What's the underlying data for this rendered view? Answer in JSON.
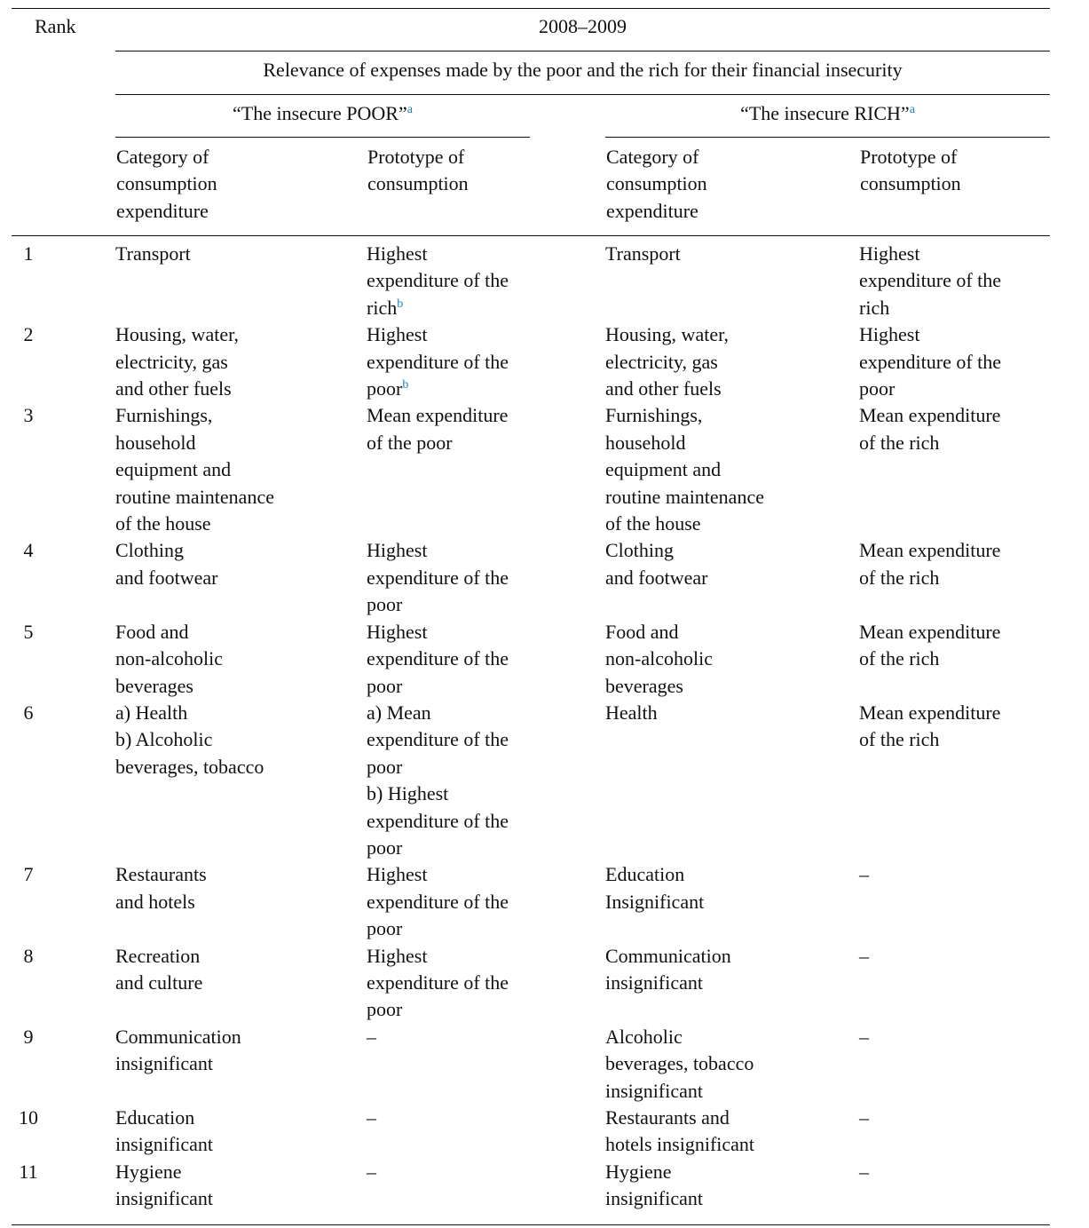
{
  "header": {
    "rank": "Rank",
    "period": "2008–2009",
    "subtitle": "Relevance of expenses made by the poor and the rich for their financial insecurity",
    "poor_group": "“The insecure POOR”",
    "poor_group_sup": "a",
    "rich_group": "“The insecure RICH”",
    "rich_group_sup": "a",
    "poor_category": "Category of\nconsumption\nexpenditure",
    "poor_prototype": "Prototype of\nconsumption",
    "rich_category": "Category of\nconsumption\nexpenditure",
    "rich_prototype": "Prototype of\nconsumption"
  },
  "footnote_color": "#1a7fc1",
  "rows": [
    {
      "rank": "1",
      "poor_category": {
        "text": "Transport"
      },
      "poor_prototype": {
        "text": "Highest\nexpenditure of the\nrich",
        "sup": "b"
      },
      "rich_category": {
        "text": "Transport"
      },
      "rich_prototype": {
        "text": "Highest\nexpenditure of the\nrich"
      }
    },
    {
      "rank": "2",
      "poor_category": {
        "text": "Housing, water,\nelectricity, gas\nand other fuels"
      },
      "poor_prototype": {
        "text": "Highest\nexpenditure of the\npoor",
        "sup": "b"
      },
      "rich_category": {
        "text": "Housing, water,\nelectricity, gas\nand other fuels"
      },
      "rich_prototype": {
        "text": "Highest\nexpenditure of the\npoor"
      }
    },
    {
      "rank": "3",
      "poor_category": {
        "text": "Furnishings,\nhousehold\nequipment and\nroutine maintenance\nof the house"
      },
      "poor_prototype": {
        "text": "Mean expenditure\nof the poor"
      },
      "rich_category": {
        "text": "Furnishings,\nhousehold\nequipment and\nroutine maintenance\nof the house"
      },
      "rich_prototype": {
        "text": "Mean expenditure\nof the rich"
      }
    },
    {
      "rank": "4",
      "poor_category": {
        "text": "Clothing\nand footwear"
      },
      "poor_prototype": {
        "text": "Highest\nexpenditure of the\npoor"
      },
      "rich_category": {
        "text": "Clothing\nand footwear"
      },
      "rich_prototype": {
        "text": "Mean expenditure\nof the rich"
      }
    },
    {
      "rank": "5",
      "poor_category": {
        "text": "Food and\nnon-alcoholic\nbeverages"
      },
      "poor_prototype": {
        "text": "Highest\nexpenditure of the\npoor"
      },
      "rich_category": {
        "text": "Food and\nnon-alcoholic\nbeverages"
      },
      "rich_prototype": {
        "text": "Mean expenditure\nof the rich"
      }
    },
    {
      "rank": "6",
      "poor_category": {
        "text": "a) Health\nb) Alcoholic\nbeverages, tobacco"
      },
      "poor_prototype": {
        "text": "a) Mean\nexpenditure of the\npoor\nb) Highest\nexpenditure of the\npoor"
      },
      "rich_category": {
        "text": "Health"
      },
      "rich_prototype": {
        "text": "Mean expenditure\nof the rich"
      }
    },
    {
      "rank": "7",
      "poor_category": {
        "text": "Restaurants\nand hotels"
      },
      "poor_prototype": {
        "text": "Highest\nexpenditure of the\npoor"
      },
      "rich_category": {
        "text": "Education\nInsignificant"
      },
      "rich_prototype": {
        "text": "–"
      }
    },
    {
      "rank": "8",
      "poor_category": {
        "text": "Recreation\nand culture"
      },
      "poor_prototype": {
        "text": "Highest\nexpenditure of the\npoor"
      },
      "rich_category": {
        "text": "Communication\ninsignificant"
      },
      "rich_prototype": {
        "text": "–"
      }
    },
    {
      "rank": "9",
      "poor_category": {
        "text": "Communication\ninsignificant"
      },
      "poor_prototype": {
        "text": "–"
      },
      "rich_category": {
        "text": "Alcoholic\nbeverages, tobacco\ninsignificant"
      },
      "rich_prototype": {
        "text": "–"
      }
    },
    {
      "rank": "10",
      "poor_category": {
        "text": "Education\ninsignificant"
      },
      "poor_prototype": {
        "text": "–"
      },
      "rich_category": {
        "text": "Restaurants and\nhotels insignificant"
      },
      "rich_prototype": {
        "text": "–"
      }
    },
    {
      "rank": "11",
      "poor_category": {
        "text": "Hygiene\ninsignificant"
      },
      "poor_prototype": {
        "text": "–"
      },
      "rich_category": {
        "text": "Hygiene\ninsignificant"
      },
      "rich_prototype": {
        "text": "–"
      }
    }
  ]
}
